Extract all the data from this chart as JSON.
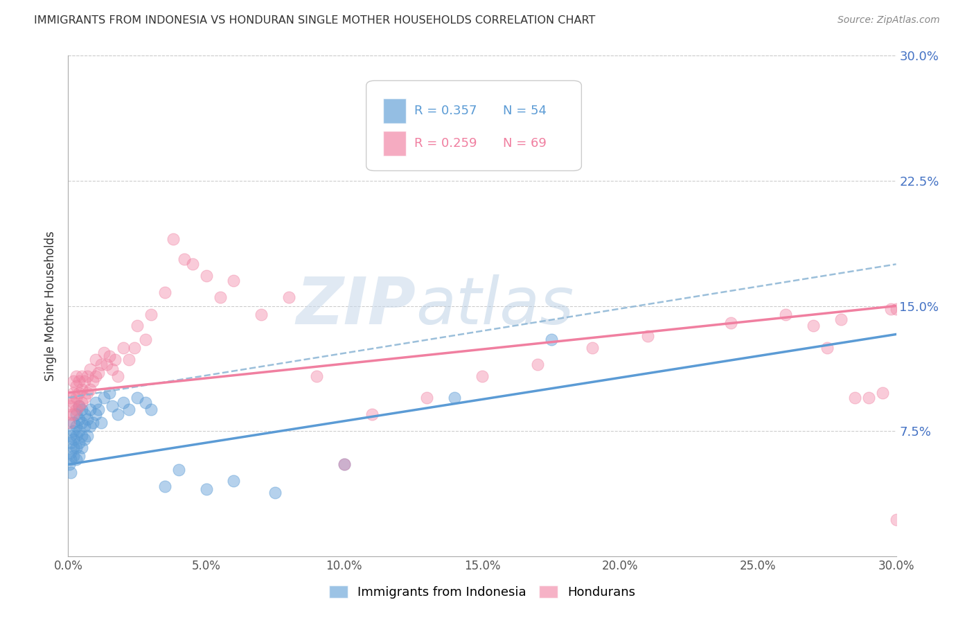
{
  "title": "IMMIGRANTS FROM INDONESIA VS HONDURAN SINGLE MOTHER HOUSEHOLDS CORRELATION CHART",
  "source": "Source: ZipAtlas.com",
  "ylabel": "Single Mother Households",
  "xlabel_ticks": [
    "0.0%",
    "5.0%",
    "10.0%",
    "15.0%",
    "20.0%",
    "25.0%",
    "30.0%"
  ],
  "ylabel_ticks": [
    "7.5%",
    "15.0%",
    "22.5%",
    "30.0%"
  ],
  "xlim": [
    0.0,
    0.3
  ],
  "ylim": [
    0.0,
    0.3
  ],
  "legend_r1": "R = 0.357",
  "legend_n1": "N = 54",
  "legend_r2": "R = 0.259",
  "legend_n2": "N = 69",
  "blue_color": "#5b9bd5",
  "pink_color": "#f07fa0",
  "watermark_zip": "ZIP",
  "watermark_atlas": "atlas",
  "indo_line_start_y": 0.055,
  "indo_line_end_y": 0.133,
  "hon_line_start_y": 0.098,
  "hon_line_end_y": 0.15,
  "dash_line_start_y": 0.095,
  "dash_line_end_y": 0.175,
  "indonesia_x": [
    0.0005,
    0.001,
    0.001,
    0.001,
    0.001,
    0.001,
    0.002,
    0.002,
    0.002,
    0.002,
    0.002,
    0.003,
    0.003,
    0.003,
    0.003,
    0.003,
    0.004,
    0.004,
    0.004,
    0.004,
    0.004,
    0.005,
    0.005,
    0.005,
    0.005,
    0.006,
    0.006,
    0.006,
    0.007,
    0.007,
    0.008,
    0.008,
    0.009,
    0.01,
    0.01,
    0.011,
    0.012,
    0.013,
    0.015,
    0.016,
    0.018,
    0.02,
    0.022,
    0.025,
    0.028,
    0.03,
    0.035,
    0.04,
    0.05,
    0.06,
    0.075,
    0.1,
    0.14,
    0.175
  ],
  "indonesia_y": [
    0.055,
    0.05,
    0.058,
    0.062,
    0.068,
    0.072,
    0.06,
    0.065,
    0.07,
    0.075,
    0.08,
    0.058,
    0.065,
    0.072,
    0.078,
    0.085,
    0.06,
    0.068,
    0.075,
    0.082,
    0.09,
    0.065,
    0.072,
    0.08,
    0.088,
    0.07,
    0.078,
    0.085,
    0.072,
    0.082,
    0.078,
    0.088,
    0.08,
    0.085,
    0.092,
    0.088,
    0.08,
    0.095,
    0.098,
    0.09,
    0.085,
    0.092,
    0.088,
    0.095,
    0.092,
    0.088,
    0.042,
    0.052,
    0.04,
    0.045,
    0.038,
    0.055,
    0.095,
    0.13
  ],
  "honduran_x": [
    0.0005,
    0.001,
    0.001,
    0.001,
    0.002,
    0.002,
    0.002,
    0.002,
    0.003,
    0.003,
    0.003,
    0.003,
    0.004,
    0.004,
    0.004,
    0.005,
    0.005,
    0.005,
    0.006,
    0.006,
    0.007,
    0.007,
    0.008,
    0.008,
    0.009,
    0.01,
    0.01,
    0.011,
    0.012,
    0.013,
    0.014,
    0.015,
    0.016,
    0.017,
    0.018,
    0.02,
    0.022,
    0.024,
    0.025,
    0.028,
    0.03,
    0.035,
    0.038,
    0.042,
    0.045,
    0.05,
    0.055,
    0.06,
    0.07,
    0.08,
    0.09,
    0.1,
    0.11,
    0.13,
    0.15,
    0.17,
    0.19,
    0.21,
    0.24,
    0.26,
    0.27,
    0.275,
    0.28,
    0.285,
    0.29,
    0.295,
    0.298,
    0.3,
    0.3
  ],
  "honduran_y": [
    0.08,
    0.085,
    0.09,
    0.095,
    0.085,
    0.092,
    0.098,
    0.105,
    0.088,
    0.095,
    0.102,
    0.108,
    0.09,
    0.098,
    0.105,
    0.092,
    0.1,
    0.108,
    0.095,
    0.105,
    0.098,
    0.108,
    0.1,
    0.112,
    0.105,
    0.108,
    0.118,
    0.11,
    0.115,
    0.122,
    0.115,
    0.12,
    0.112,
    0.118,
    0.108,
    0.125,
    0.118,
    0.125,
    0.138,
    0.13,
    0.145,
    0.158,
    0.19,
    0.178,
    0.175,
    0.168,
    0.155,
    0.165,
    0.145,
    0.155,
    0.108,
    0.055,
    0.085,
    0.095,
    0.108,
    0.115,
    0.125,
    0.132,
    0.14,
    0.145,
    0.138,
    0.125,
    0.142,
    0.095,
    0.095,
    0.098,
    0.148,
    0.148,
    0.022
  ]
}
